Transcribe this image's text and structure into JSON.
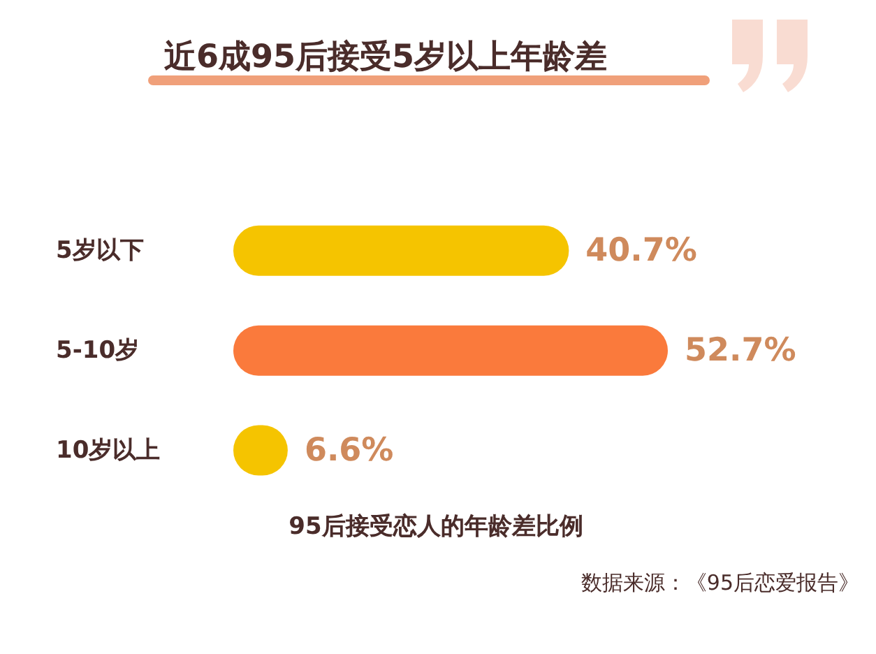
{
  "chart_data": {
    "type": "bar",
    "orientation": "horizontal",
    "title": "近6成95后接受5岁以上年龄差",
    "xlabel": "95后接受恋人的年龄差比例",
    "categories": [
      "5岁以下",
      "5-10岁",
      "10岁以上"
    ],
    "values": [
      40.7,
      52.7,
      6.6
    ],
    "colors": [
      "#f5c400",
      "#fa7a3c",
      "#f5c400"
    ],
    "value_labels": [
      "40.7%",
      "52.7%",
      "6.6%"
    ],
    "annotations": [
      "数据来源：《95后恋爱报告》"
    ]
  }
}
